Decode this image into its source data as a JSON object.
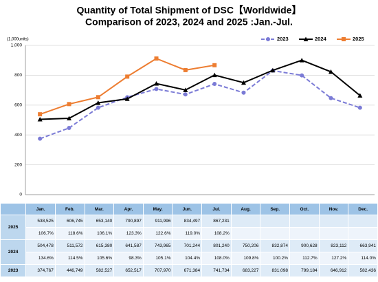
{
  "chart_data": {
    "type": "line",
    "title": "Quantity of Total Shipment of DSC【Worldwide】",
    "subtitle": "Comparison of 2023, 2024 and 2025 :Jan.-Jul.",
    "y_unit": "(1,000units)",
    "categories": [
      "Jan.",
      "Feb.",
      "Mar.",
      "Apr.",
      "May.",
      "Jun.",
      "Jul.",
      "Aug.",
      "Sep.",
      "Oct.",
      "Nov.",
      "Dec."
    ],
    "ylim": [
      0,
      1000
    ],
    "yticks": [
      0,
      200,
      400,
      600,
      800,
      {
        "value": 1000,
        "label": "1,000"
      }
    ],
    "grid": true,
    "legend": "top-right",
    "series": [
      {
        "name": "2023",
        "color": "#7b7bd6",
        "dashed": true,
        "marker": "circle",
        "values": [
          374.767,
          446.749,
          582.527,
          652.517,
          707.97,
          671.384,
          741.734,
          683.227,
          831.098,
          799.184,
          646.912,
          582.436
        ],
        "value_labels": [
          "374,767",
          "446,749",
          "582,527",
          "652,517",
          "707,970",
          "671,384",
          "741,734",
          "683,227",
          "831,098",
          "799,184",
          "646,912",
          "582,436"
        ]
      },
      {
        "name": "2024",
        "color": "#000000",
        "dashed": false,
        "marker": "triangle",
        "values": [
          504.478,
          511.572,
          615.38,
          641.587,
          743.965,
          701.244,
          801.24,
          750.206,
          832.874,
          900.628,
          823.112,
          663.941
        ],
        "value_labels": [
          "504,478",
          "511,572",
          "615,380",
          "641,587",
          "743,965",
          "701,244",
          "801,240",
          "750,206",
          "832,874",
          "900,628",
          "823,112",
          "663,941"
        ],
        "yoy_labels": [
          "134.6%",
          "114.5%",
          "105.6%",
          "98.3%",
          "105.1%",
          "104.4%",
          "108.0%",
          "109.8%",
          "100.2%",
          "112.7%",
          "127.2%",
          "114.0%"
        ]
      },
      {
        "name": "2025",
        "color": "#ed7d31",
        "dashed": false,
        "marker": "square",
        "values": [
          538.525,
          606.745,
          653.14,
          790.897,
          911.996,
          834.497,
          867.231,
          null,
          null,
          null,
          null,
          null
        ],
        "value_labels": [
          "538,525",
          "606,745",
          "653,140",
          "790,897",
          "911,996",
          "834,497",
          "867,231",
          null,
          null,
          null,
          null,
          null
        ],
        "yoy_labels": [
          "106.7%",
          "118.6%",
          "106.1%",
          "123.3%",
          "122.6%",
          "119.0%",
          "108.2%",
          null,
          null,
          null,
          null,
          null
        ]
      }
    ]
  }
}
